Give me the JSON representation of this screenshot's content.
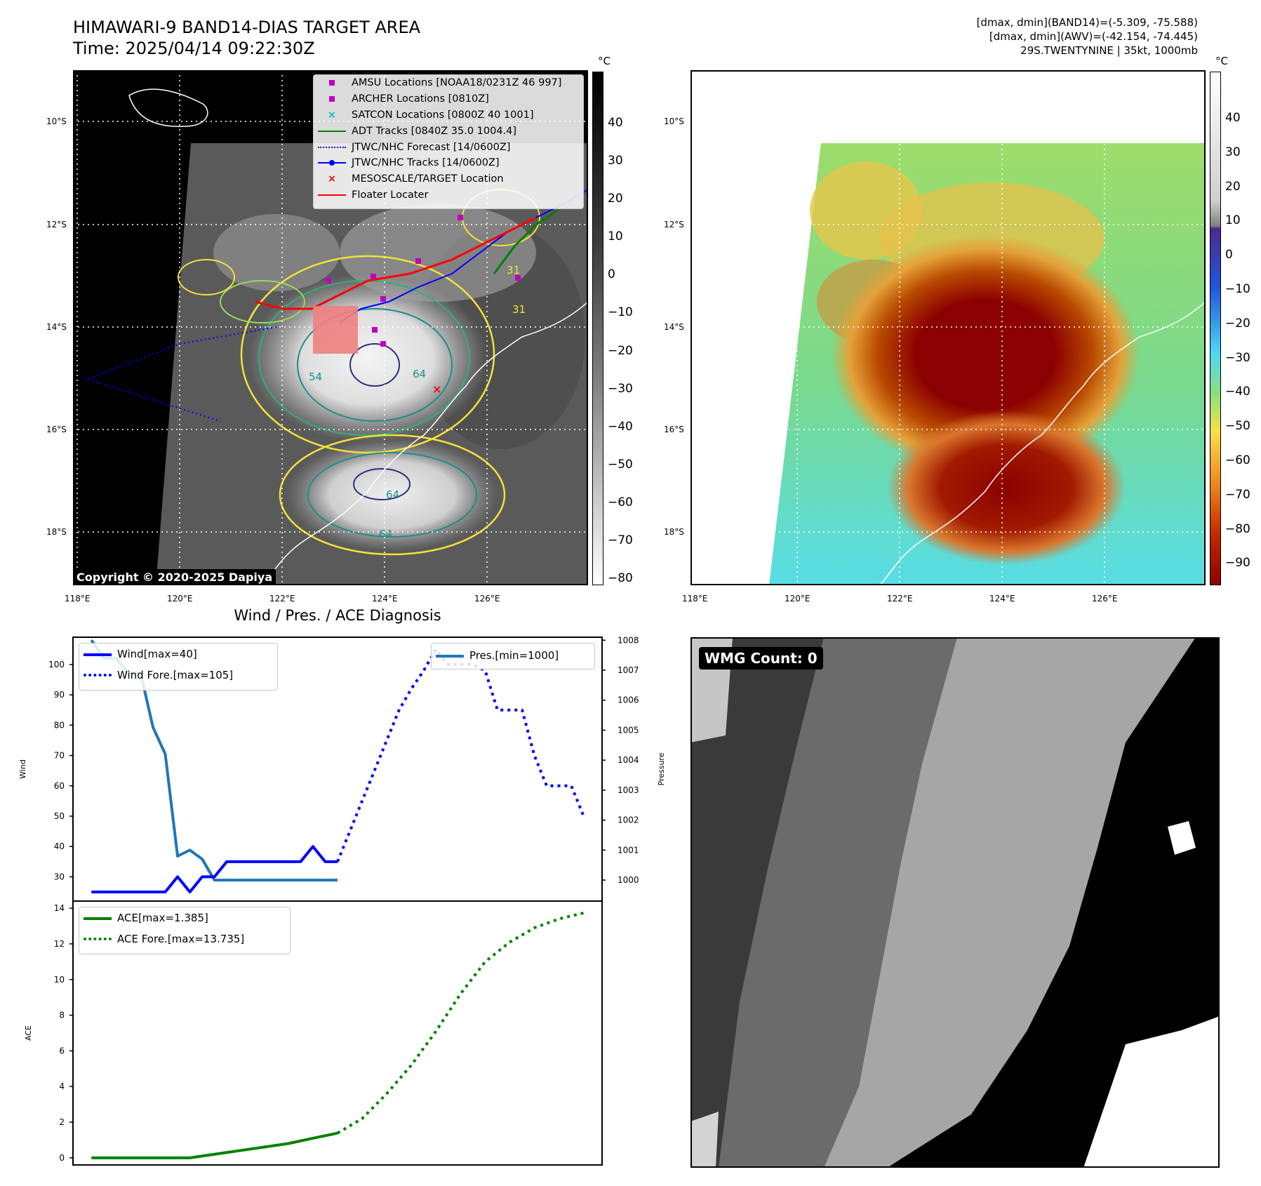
{
  "header": {
    "title_line1": "HIMAWARI-9 BAND14-DIAS TARGET AREA",
    "title_line2": "Time: 2025/04/14 09:22:30Z",
    "info_line1": "[dmax, dmin](BAND14)=(-5.309, -75.588)",
    "info_line2": "[dmax, dmin](AWV)=(-42.154, -74.445)",
    "info_line3": "29S.TWENTYNINE | 35kt, 1000mb"
  },
  "map_left": {
    "copyright": "Copyright © 2020-2025 Dapiya",
    "colorbar_unit": "°C",
    "colorbar_ticks": [
      "40",
      "30",
      "20",
      "10",
      "0",
      "−10",
      "−20",
      "−30",
      "−40",
      "−50",
      "−60",
      "−70",
      "−80"
    ],
    "lat_labels": [
      "10°S",
      "12°S",
      "14°S",
      "16°S",
      "18°S"
    ],
    "lon_labels": [
      "118°E",
      "120°E",
      "122°E",
      "124°E",
      "126°E"
    ],
    "legend": [
      {
        "label": "AMSU Locations [NOAA18/0231Z 46 997]",
        "color": "#bf00bf",
        "marker": "square"
      },
      {
        "label": "ARCHER Locations [0810Z]",
        "color": "#bf00bf",
        "marker": "square"
      },
      {
        "label": "SATCON Locations [0800Z 40 1001]",
        "color": "#00bfbf",
        "marker": "x"
      },
      {
        "label": "ADT Tracks [0840Z 35.0 1004.4]",
        "color": "#008000",
        "marker": "line"
      },
      {
        "label": "JTWC/NHC Forecast [14/0600Z]",
        "color": "#0000ff",
        "marker": "dotted"
      },
      {
        "label": "JTWC/NHC Tracks [14/0600Z]",
        "color": "#0000ff",
        "marker": "line-dot"
      },
      {
        "label": "MESOSCALE/TARGET Location",
        "color": "#ff0000",
        "marker": "x"
      },
      {
        "label": "Floater Locater",
        "color": "#ff0000",
        "marker": "line"
      }
    ],
    "contour_labels": [
      "54",
      "64",
      "54",
      "64",
      "64",
      "31",
      "31"
    ]
  },
  "map_right": {
    "colorbar_unit": "°C",
    "colorbar_ticks": [
      "40",
      "30",
      "20",
      "10",
      "0",
      "−10",
      "−20",
      "−30",
      "−40",
      "−50",
      "−60",
      "−70",
      "−80",
      "−90"
    ],
    "lat_labels": [
      "10°S",
      "12°S",
      "14°S",
      "16°S",
      "18°S"
    ],
    "lon_labels": [
      "118°E",
      "120°E",
      "122°E",
      "124°E",
      "126°E"
    ]
  },
  "wmg_panel": {
    "label": "WMG Count: 0"
  },
  "chart_data": [
    {
      "type": "line",
      "title": "Wind / Pres. / ACE Diagnosis",
      "ylabel": "Wind",
      "ylabel_right": "Pressure",
      "ylim": [
        22,
        109
      ],
      "ylim_right": [
        999.3,
        1008.1
      ],
      "yticks": [
        30,
        40,
        50,
        60,
        70,
        80,
        90,
        100
      ],
      "yticks_right": [
        1000,
        1001,
        1002,
        1003,
        1004,
        1005,
        1006,
        1007,
        1008
      ],
      "x": [
        0,
        1,
        2,
        3,
        4,
        5,
        6,
        7,
        8,
        9,
        10,
        11,
        12,
        13,
        14,
        15,
        16,
        17,
        18,
        19,
        20,
        21,
        22,
        23,
        24,
        25,
        26,
        27,
        28,
        29,
        30,
        31,
        32,
        33,
        34,
        35,
        36,
        37,
        38,
        39,
        40
      ],
      "series": [
        {
          "name": "Wind[max=40]",
          "axis": "left",
          "style": "solid",
          "color": "#0000ff",
          "x": [
            0,
            1,
            2,
            3,
            4,
            5,
            6,
            7,
            8,
            9,
            10,
            11,
            12,
            13,
            14,
            15,
            16,
            17,
            18,
            19,
            20
          ],
          "values": [
            25,
            25,
            25,
            25,
            25,
            25,
            25,
            30,
            25,
            30,
            30,
            35,
            35,
            35,
            35,
            35,
            35,
            35,
            40,
            35,
            35
          ]
        },
        {
          "name": "Wind Fore.[max=105]",
          "axis": "left",
          "style": "dotted",
          "color": "#0000ff",
          "x": [
            20,
            21,
            22,
            23,
            24,
            25,
            26,
            27,
            28,
            29,
            30,
            31,
            32,
            33,
            34,
            35,
            36,
            37,
            38,
            39,
            40
          ],
          "values": [
            35,
            45,
            55,
            65,
            75,
            85,
            92,
            98,
            105,
            100,
            100,
            100,
            98,
            85,
            85,
            85,
            70,
            60,
            60,
            60,
            50
          ]
        },
        {
          "name": "Pres.[min=1000]",
          "axis": "right",
          "style": "solid",
          "color": "#1f77b4",
          "x": [
            0,
            1,
            2,
            3,
            4,
            5,
            6,
            7,
            8,
            9,
            10,
            11,
            12,
            13,
            14,
            15,
            16,
            17,
            18,
            19,
            20
          ],
          "values": [
            1008,
            1007.4,
            1007.4,
            1006.9,
            1006.9,
            1005.1,
            1004.2,
            1000.8,
            1001,
            1000.7,
            1000,
            1000,
            1000,
            1000,
            1000,
            1000,
            1000,
            1000,
            1000,
            1000,
            1000
          ]
        }
      ]
    },
    {
      "type": "line",
      "ylabel": "ACE",
      "ylim": [
        -0.4,
        14.4
      ],
      "yticks": [
        0,
        2,
        4,
        6,
        8,
        10,
        12,
        14
      ],
      "series": [
        {
          "name": "ACE[max=1.385]",
          "style": "solid",
          "color": "#008000",
          "x": [
            0,
            2,
            4,
            6,
            8,
            10,
            12,
            14,
            16,
            18,
            20
          ],
          "values": [
            0,
            0,
            0,
            0,
            0,
            0.2,
            0.4,
            0.6,
            0.8,
            1.1,
            1.385
          ]
        },
        {
          "name": "ACE Fore.[max=13.735]",
          "style": "dotted",
          "color": "#008000",
          "x": [
            20,
            22,
            24,
            26,
            28,
            30,
            32,
            34,
            36,
            38,
            40
          ],
          "values": [
            1.385,
            2.2,
            3.6,
            5.2,
            7.1,
            9.2,
            11.0,
            12.1,
            12.9,
            13.4,
            13.735
          ]
        }
      ]
    }
  ]
}
